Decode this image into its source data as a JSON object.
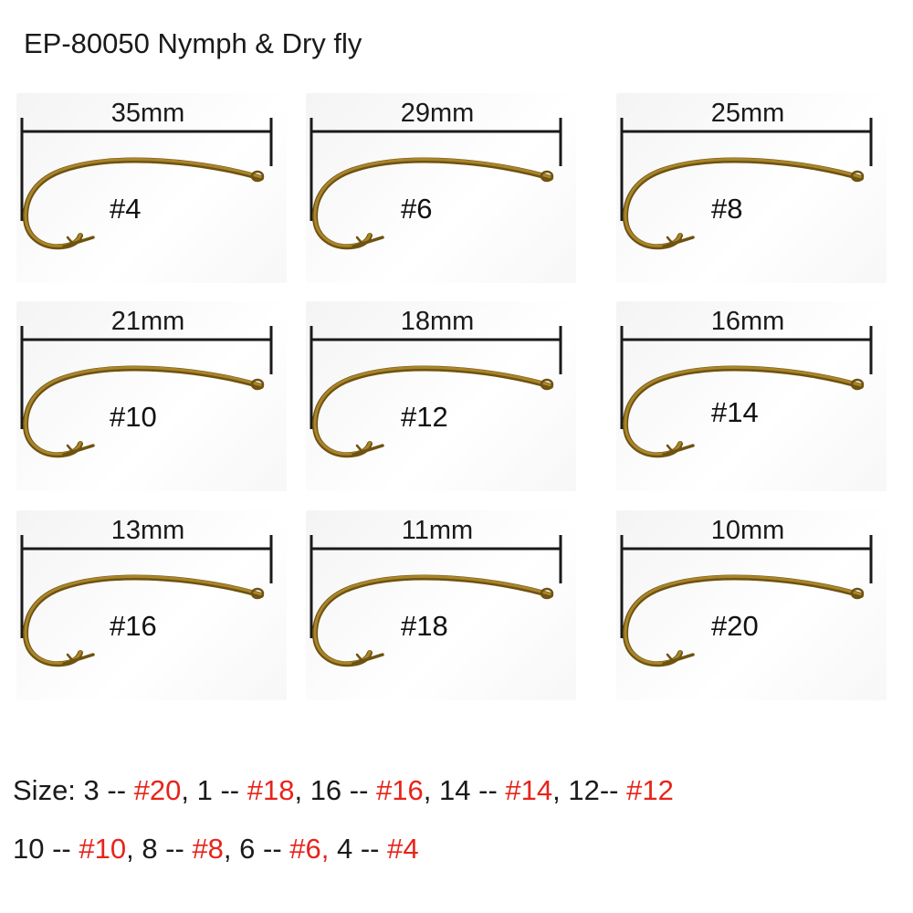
{
  "title": "EP-80050 Nymph & Dry fly",
  "colors": {
    "hook_gold": "#a9852a",
    "hook_dark": "#6e5210",
    "measure_line": "#1a1a1a",
    "highlight": "#e8231a"
  },
  "hooks": [
    {
      "length": "35mm",
      "size": "#4"
    },
    {
      "length": "29mm",
      "size": "#6"
    },
    {
      "length": "25mm",
      "size": "#8"
    },
    {
      "length": "21mm",
      "size": "#10"
    },
    {
      "length": "18mm",
      "size": "#12"
    },
    {
      "length": "16mm",
      "size": "#14"
    },
    {
      "length": "13mm",
      "size": "#16"
    },
    {
      "length": "11mm",
      "size": "#18"
    },
    {
      "length": "10mm",
      "size": "#20"
    }
  ],
  "size_map": {
    "line1": [
      {
        "t": "Size: 3 -- ",
        "red": false
      },
      {
        "t": "#20",
        "red": true
      },
      {
        "t": ", 1 -- ",
        "red": false
      },
      {
        "t": "#18",
        "red": true
      },
      {
        "t": ", 16 -- ",
        "red": false
      },
      {
        "t": "#16",
        "red": true
      },
      {
        "t": ", 14 -- ",
        "red": false
      },
      {
        "t": "#14",
        "red": true
      },
      {
        "t": ", 12-- ",
        "red": false
      },
      {
        "t": "#12",
        "red": true
      }
    ],
    "line2": [
      {
        "t": "10 -- ",
        "red": false
      },
      {
        "t": "#10",
        "red": true
      },
      {
        "t": ", 8 -- ",
        "red": false
      },
      {
        "t": "#8",
        "red": true
      },
      {
        "t": ", 6 -- ",
        "red": false
      },
      {
        "t": "#6,",
        "red": true
      },
      {
        "t": " 4 -- ",
        "red": false
      },
      {
        "t": "#4",
        "red": true
      }
    ]
  }
}
